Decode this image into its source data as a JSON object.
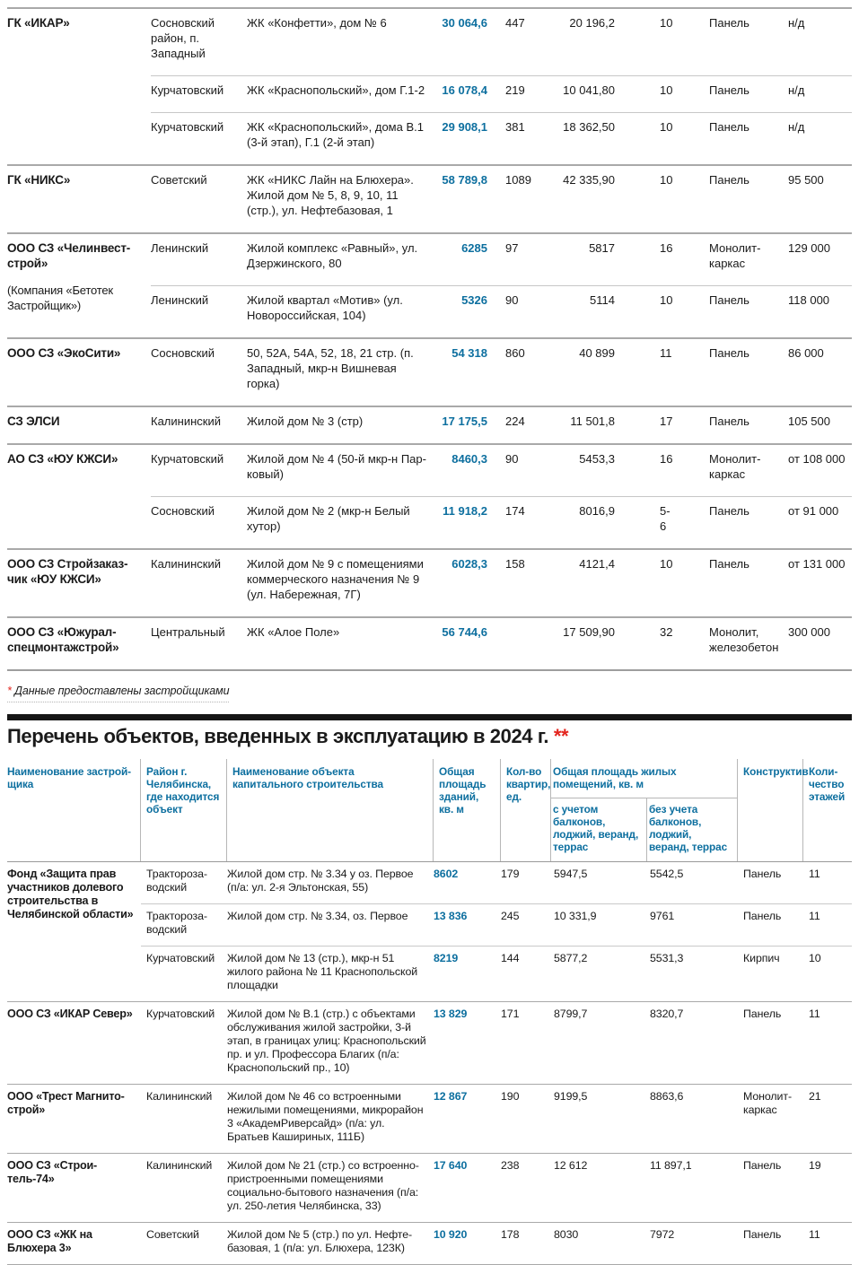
{
  "colors": {
    "accent_blue": "#0d6f9f",
    "accent_red": "#e3241d",
    "text": "#1a1a1a",
    "rule_light": "#c7c7c7",
    "rule_dark": "#9e9e9e",
    "title_bar": "#161616"
  },
  "table1": {
    "footnote_mark": "*",
    "footnote_text": "Данные предоставлены застройщиками",
    "groups": [
      {
        "company": "ГК «ИКАР»",
        "rows": [
          {
            "district": "Сосновский район, п. Запад­ный",
            "object": "ЖК «Конфетти», дом № 6",
            "area": "30 064,6",
            "flats": "447",
            "living": "20 196,2",
            "floors": "10",
            "constr": "Панель",
            "price": "н/д"
          },
          {
            "district": "Курчатовский",
            "object": "ЖК «Краснопольский», дом Г.1-2",
            "area": "16 078,4",
            "flats": "219",
            "living": "10 041,80",
            "floors": "10",
            "constr": "Панель",
            "price": "н/д"
          },
          {
            "district": "Курчатовский",
            "object": "ЖК «Краснопольский», дома В.1 (3-й этап), Г.1 (2-й этап)",
            "area": "29 908,1",
            "flats": "381",
            "living": "18 362,50",
            "floors": "10",
            "constr": "Панель",
            "price": "н/д"
          }
        ]
      },
      {
        "company": "ГК «НИКС»",
        "rows": [
          {
            "district": "Советский",
            "object": "ЖК «НИКС Лайн на Блюхера». Жилой дом № 5, 8, 9, 10, 11 (стр.), ул. Нефтебазовая, 1",
            "area": "58 789,8",
            "flats": "1089",
            "living": "42 335,90",
            "floors": "10",
            "constr": "Панель",
            "price": "95 500"
          }
        ]
      },
      {
        "company": "ООО СЗ «Челинвест-строй»",
        "note": "(Компания «Бетотек Застройщик»)",
        "rows": [
          {
            "district": "Ленинский",
            "object": "Жилой комплекс «Равный», ул. Дзержинского, 80",
            "area": "6285",
            "flats": "97",
            "living": "5817",
            "floors": "16",
            "constr": "Монолит-каркас",
            "price": "129 000"
          },
          {
            "district": "Ленинский",
            "object": "Жилой квартал «Мотив» (ул. Ново­российская, 104)",
            "area": "5326",
            "flats": "90",
            "living": "5114",
            "floors": "10",
            "constr": "Панель",
            "price": "118 000"
          }
        ]
      },
      {
        "company": "ООО СЗ «ЭкоСити»",
        "rows": [
          {
            "district": "Сосновский",
            "object": "50, 52А, 54А, 52, 18, 21 стр. (п. Западный, мкр-н Вишневая горка)",
            "area": "54 318",
            "flats": "860",
            "living": "40 899",
            "floors": "11",
            "constr": "Панель",
            "price": "86 000"
          }
        ]
      },
      {
        "company": "СЗ ЭЛСИ",
        "rows": [
          {
            "district": "Калининский",
            "object": "Жилой дом № 3 (стр)",
            "area": "17 175,5",
            "flats": "224",
            "living": "11 501,8",
            "floors": "17",
            "constr": "Панель",
            "price": "105 500"
          }
        ]
      },
      {
        "company": "АО СЗ «ЮУ КЖСИ»",
        "rows": [
          {
            "district": "Курчатовский",
            "object": "Жилой дом № 4 (50-й мкр-н Пар­ковый)",
            "area": "8460,3",
            "flats": "90",
            "living": "5453,3",
            "floors": "16",
            "constr": "Монолит-кар­кас",
            "price": "от 108 000"
          },
          {
            "district": "Сосновский",
            "object": "Жилой дом № 2 (мкр-н Белый хутор)",
            "area": "11 918,2",
            "flats": "174",
            "living": "8016,9",
            "floors": "5-6",
            "constr": "Панель",
            "price": "от 91 000"
          }
        ]
      },
      {
        "company": "ООО СЗ Стройзаказ­чик «ЮУ КЖСИ»",
        "rows": [
          {
            "district": "Калининский",
            "object": "Жилой дом № 9 с помещениями коммерческого назначения № 9 (ул. Набережная, 7Г)",
            "area": "6028,3",
            "flats": "158",
            "living": "4121,4",
            "floors": "10",
            "constr": "Панель",
            "price": "от 131 000"
          }
        ]
      },
      {
        "company": "ООО СЗ «Южурал­спецмонтажстрой»",
        "rows": [
          {
            "district": "Центральный",
            "object": "ЖК «Алое Поле»",
            "area": "56 744,6",
            "flats": "",
            "living": "17 509,90",
            "floors": "32",
            "constr": "Монолит, железобетон",
            "price": "300 000"
          }
        ]
      }
    ]
  },
  "section2": {
    "title": "Перечень объектов, введенных в эксплуатацию  в 2024 г.",
    "title_mark": "**",
    "header": {
      "col1": "Наименование застрой­щика",
      "col2": "Район г. Челябинска, где находится объект",
      "col3": "Наименование объекта капитального строительства",
      "col4": "Общая пло­щадь зданий, кв. м",
      "col5": "Кол-во квартир, ед.",
      "col6": "Общая площадь жилых помещений, кв. м",
      "col6a": "с учетом балконов, лоджий, веранд, террас",
      "col6b": "без учета балконов, лоджий, веранд, террас",
      "col7": "Конструктив",
      "col8": "Коли­чество этажей"
    },
    "groups": [
      {
        "company": "Фонд «Защита прав участников долевого строитель­ства в Челябинской области»",
        "rows": [
          {
            "district": "Трактор回за­водский",
            "object": "Жилой дом стр. № 3.34 у оз. Первое (п/а: ул. 2-я Эльтонская, 55)",
            "area": "8602",
            "flats": "179",
            "area_with": "5947,5",
            "area_without": "5542,5",
            "constr": "Панель",
            "floors": "11"
          },
          {
            "district": "Трактороза­водский",
            "object": "Жилой дом стр. № 3.34, оз. Первое",
            "area": "13 836",
            "flats": "245",
            "area_with": "10 331,9",
            "area_without": "9761",
            "constr": "Панель",
            "floors": "11"
          },
          {
            "district": "Курчатовский",
            "object": "Жилой дом № 13 (стр.), мкр-н 51 жилого района № 11 Краснополь­ской площадки",
            "area": "8219",
            "flats": "144",
            "area_with": "5877,2",
            "area_without": "5531,3",
            "constr": "Кирпич",
            "floors": "10"
          }
        ]
      },
      {
        "company": "ООО СЗ «ИКАР Север»",
        "rows": [
          {
            "district": "Курчатовский",
            "object": "Жилой дом № В.1 (стр.) с объектами обслуживания жилой застройки, 3-й этап, в границах улиц: Краснополь­ский пр. и ул. Профессора Благих (п/а: Краснопольский пр., 10)",
            "area": "13 829",
            "flats": "171",
            "area_with": "8799,7",
            "area_without": "8320,7",
            "constr": "Панель",
            "floors": "11"
          }
        ]
      },
      {
        "company": "ООО «Трест Магнито­строй»",
        "rows": [
          {
            "district": "Калининский",
            "object": "Жилой дом № 46 со встроенными нежилыми помещениями, микро­район 3 «АкадемРиверсайд» (п/а: ул. Братьев Кашириных, 111Б)",
            "area": "12 867",
            "flats": "190",
            "area_with": "9199,5",
            "area_without": "8863,6",
            "constr": "Монолит-каркас",
            "floors": "21"
          }
        ]
      },
      {
        "company": "ООО СЗ «Строи­тель-74»",
        "rows": [
          {
            "district": "Калининский",
            "object": "Жилой дом № 21 (стр.) со встроен­но-пристроенными помещениями социально-бытового назначения (п/а: ул. 250-летия Челябинска, 33)",
            "area": "17 640",
            "flats": "238",
            "area_with": "12 612",
            "area_without": "11 897,1",
            "constr": "Панель",
            "floors": "19"
          }
        ]
      },
      {
        "company": "ООО СЗ «ЖК на Блюхера 3»",
        "rows": [
          {
            "district": "Советский",
            "object": "Жилой дом № 5 (стр.) по ул. Нефте­базовая, 1 (п/а: ул. Блюхера, 123К)",
            "area": "10 920",
            "flats": "178",
            "area_with": "8030",
            "area_without": "7972",
            "constr": "Панель",
            "floors": "11"
          }
        ]
      }
    ]
  }
}
